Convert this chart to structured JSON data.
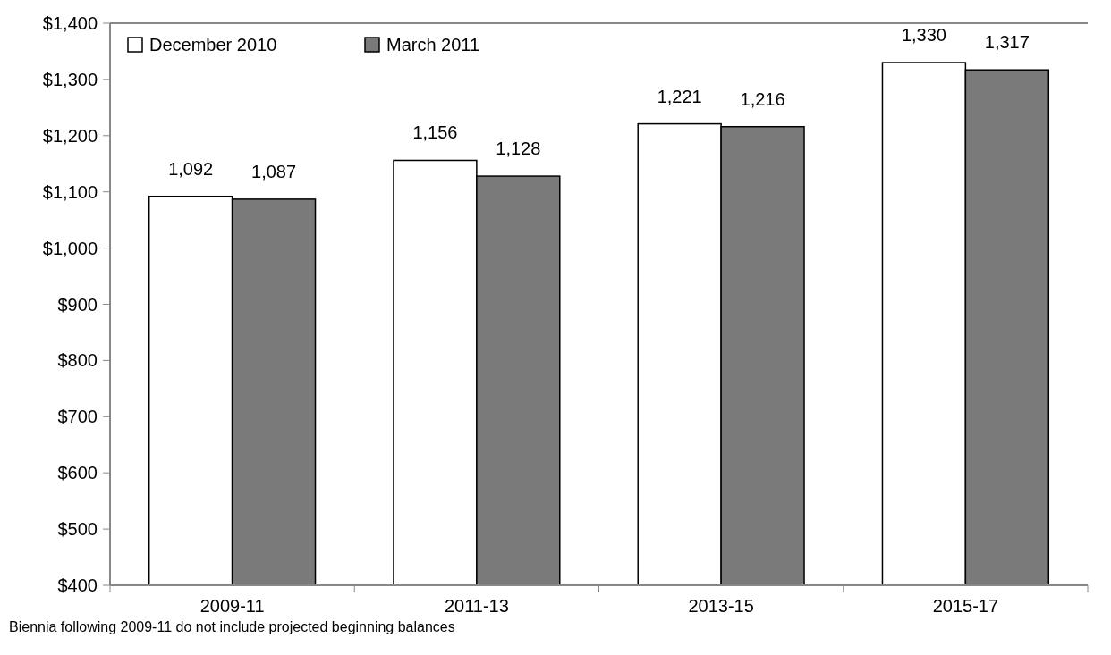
{
  "chart_data": {
    "type": "bar",
    "categories": [
      "2009-11",
      "2011-13",
      "2013-15",
      "2015-17"
    ],
    "series": [
      {
        "name": "December 2010",
        "color": "#ffffff",
        "values": [
          1092,
          1156,
          1221,
          1330
        ],
        "value_labels": [
          "1,092",
          "1,156",
          "1,221",
          "1,330"
        ]
      },
      {
        "name": "March 2011",
        "color": "#7a7a7a",
        "values": [
          1087,
          1128,
          1216,
          1317
        ],
        "value_labels": [
          "1,087",
          "1,128",
          "1,216",
          "1,317"
        ]
      }
    ],
    "ylim": [
      400,
      1400
    ],
    "yticks": [
      {
        "value": 400,
        "label": "$400"
      },
      {
        "value": 500,
        "label": "$500"
      },
      {
        "value": 600,
        "label": "$600"
      },
      {
        "value": 700,
        "label": "$700"
      },
      {
        "value": 800,
        "label": "$800"
      },
      {
        "value": 900,
        "label": "$900"
      },
      {
        "value": 1000,
        "label": "$1,000"
      },
      {
        "value": 1100,
        "label": "$1,100"
      },
      {
        "value": 1200,
        "label": "$1,200"
      },
      {
        "value": 1300,
        "label": "$1,300"
      },
      {
        "value": 1400,
        "label": "$1,400"
      }
    ],
    "legend": "top left",
    "grid": false,
    "annotations": [
      "Biennia following 2009-11 do not include projected beginning balances"
    ]
  }
}
